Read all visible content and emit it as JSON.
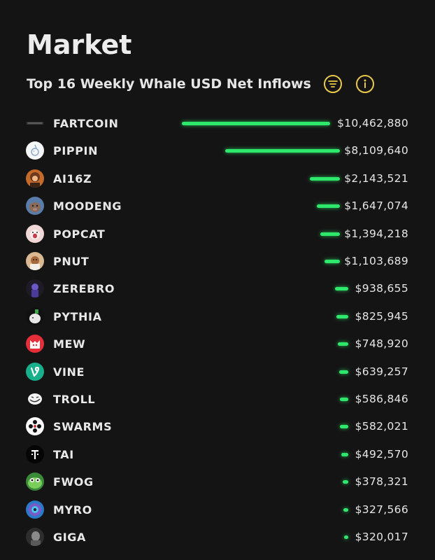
{
  "header": {
    "title": "Market",
    "subtitle": "Top 16 Weekly Whale USD Net Inflows",
    "filter_icon": "filter-lines-icon",
    "info_icon": "info-icon",
    "accent_color": "#e9c84a"
  },
  "bar_color": "#2ee86c",
  "chart_data": {
    "type": "bar",
    "orientation": "horizontal",
    "categories": [
      "FARTCOIN",
      "PIPPIN",
      "AI16Z",
      "MOODENG",
      "POPCAT",
      "PNUT",
      "ZEREBRO",
      "PYTHIA",
      "MEW",
      "VINE",
      "TROLL",
      "SWARMS",
      "TAI",
      "FWOG",
      "MYRO",
      "GIGA"
    ],
    "values": [
      10462880,
      8109640,
      2143521,
      1647074,
      1394218,
      1103689,
      938655,
      825945,
      748920,
      639257,
      586846,
      582021,
      492570,
      378321,
      327566,
      320017
    ],
    "value_labels": [
      "$10,462,880",
      "$8,109,640",
      "$2,143,521",
      "$1,647,074",
      "$1,394,218",
      "$1,103,689",
      "$938,655",
      "$825,945",
      "$748,920",
      "$639,257",
      "$586,846",
      "$582,021",
      "$492,570",
      "$378,321",
      "$327,566",
      "$320,017"
    ],
    "grid": false,
    "legend": "none"
  },
  "tokens": [
    {
      "icon": "fartcoin-logo-icon"
    },
    {
      "icon": "pippin-logo-icon"
    },
    {
      "icon": "ai16z-avatar-icon"
    },
    {
      "icon": "moodeng-avatar-icon"
    },
    {
      "icon": "popcat-avatar-icon"
    },
    {
      "icon": "pnut-avatar-icon"
    },
    {
      "icon": "zerebro-avatar-icon"
    },
    {
      "icon": "pythia-avatar-icon"
    },
    {
      "icon": "mew-avatar-icon"
    },
    {
      "icon": "vine-logo-icon"
    },
    {
      "icon": "troll-face-icon"
    },
    {
      "icon": "swarms-logo-icon"
    },
    {
      "icon": "tai-logo-icon"
    },
    {
      "icon": "fwog-avatar-icon"
    },
    {
      "icon": "myro-avatar-icon"
    },
    {
      "icon": "giga-avatar-icon"
    }
  ]
}
